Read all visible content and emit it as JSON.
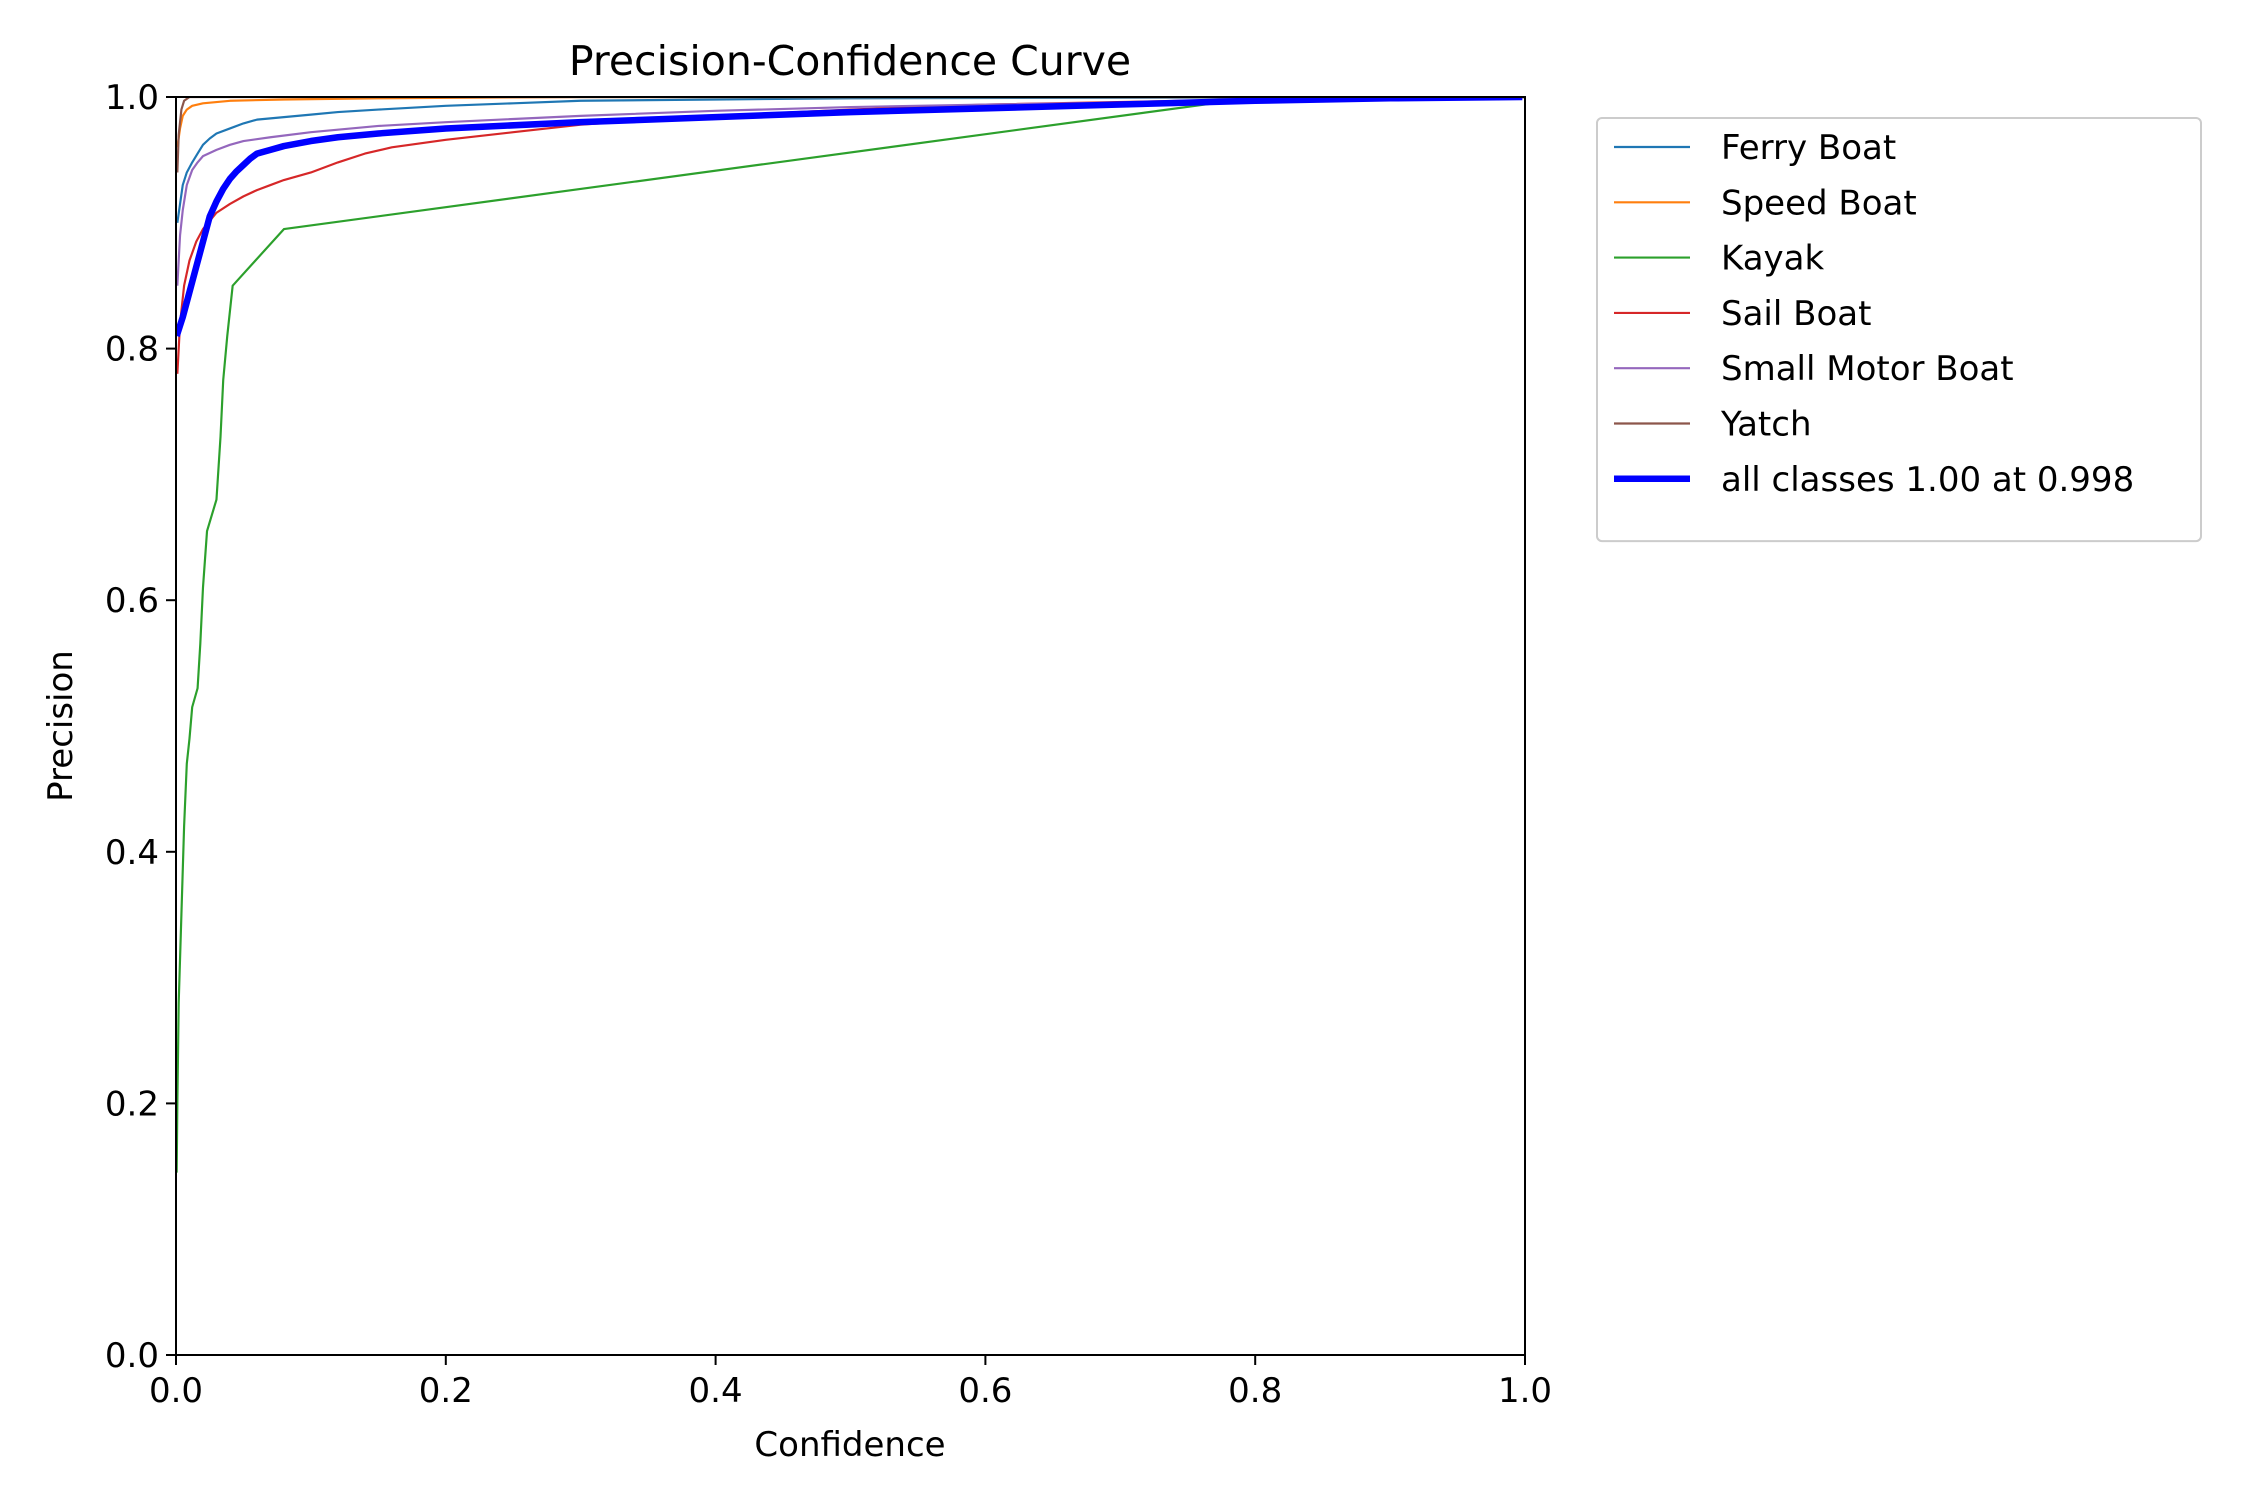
{
  "chart_data": {
    "type": "line",
    "title": "Precision-Confidence Curve",
    "xlabel": "Confidence",
    "ylabel": "Precision",
    "xlim": [
      0,
      1
    ],
    "ylim": [
      0,
      1
    ],
    "xticks": [
      "0.0",
      "0.2",
      "0.4",
      "0.6",
      "0.8",
      "1.0"
    ],
    "yticks": [
      "0.0",
      "0.2",
      "0.4",
      "0.6",
      "0.8",
      "1.0"
    ],
    "grid": false,
    "legend_position": "outside-upper-right",
    "series": [
      {
        "name": "Ferry Boat",
        "color": "#1f77b4",
        "line_width": 1.5,
        "points": [
          [
            0.001,
            0.9
          ],
          [
            0.003,
            0.915
          ],
          [
            0.005,
            0.93
          ],
          [
            0.008,
            0.94
          ],
          [
            0.012,
            0.948
          ],
          [
            0.016,
            0.955
          ],
          [
            0.02,
            0.962
          ],
          [
            0.025,
            0.967
          ],
          [
            0.03,
            0.971
          ],
          [
            0.04,
            0.975
          ],
          [
            0.05,
            0.979
          ],
          [
            0.06,
            0.982
          ],
          [
            0.08,
            0.984
          ],
          [
            0.1,
            0.986
          ],
          [
            0.12,
            0.988
          ],
          [
            0.15,
            0.99
          ],
          [
            0.2,
            0.993
          ],
          [
            0.25,
            0.995
          ],
          [
            0.3,
            0.997
          ],
          [
            0.4,
            0.998
          ],
          [
            0.5,
            0.999
          ],
          [
            1.0,
            1.0
          ]
        ]
      },
      {
        "name": "Speed Boat",
        "color": "#ff7f0e",
        "line_width": 1.5,
        "points": [
          [
            0.001,
            0.96
          ],
          [
            0.003,
            0.975
          ],
          [
            0.005,
            0.985
          ],
          [
            0.008,
            0.99
          ],
          [
            0.012,
            0.993
          ],
          [
            0.02,
            0.995
          ],
          [
            0.04,
            0.997
          ],
          [
            0.08,
            0.998
          ],
          [
            0.15,
            0.999
          ],
          [
            0.3,
            1.0
          ],
          [
            1.0,
            1.0
          ]
        ]
      },
      {
        "name": "Kayak",
        "color": "#2ca02c",
        "line_width": 1.5,
        "points": [
          [
            0.0005,
            0.145
          ],
          [
            0.001,
            0.2
          ],
          [
            0.002,
            0.28
          ],
          [
            0.004,
            0.35
          ],
          [
            0.006,
            0.42
          ],
          [
            0.008,
            0.47
          ],
          [
            0.01,
            0.49
          ],
          [
            0.012,
            0.515
          ],
          [
            0.016,
            0.53
          ],
          [
            0.018,
            0.565
          ],
          [
            0.02,
            0.61
          ],
          [
            0.023,
            0.655
          ],
          [
            0.03,
            0.68
          ],
          [
            0.033,
            0.73
          ],
          [
            0.035,
            0.775
          ],
          [
            0.038,
            0.81
          ],
          [
            0.042,
            0.85
          ],
          [
            0.08,
            0.895
          ],
          [
            0.79,
            0.998
          ],
          [
            0.85,
            1.0
          ],
          [
            1.0,
            1.0
          ]
        ]
      },
      {
        "name": "Sail Boat",
        "color": "#d62728",
        "line_width": 1.5,
        "points": [
          [
            0.001,
            0.78
          ],
          [
            0.003,
            0.82
          ],
          [
            0.006,
            0.85
          ],
          [
            0.01,
            0.87
          ],
          [
            0.015,
            0.885
          ],
          [
            0.02,
            0.895
          ],
          [
            0.03,
            0.908
          ],
          [
            0.04,
            0.915
          ],
          [
            0.05,
            0.921
          ],
          [
            0.06,
            0.926
          ],
          [
            0.07,
            0.93
          ],
          [
            0.08,
            0.934
          ],
          [
            0.1,
            0.94
          ],
          [
            0.12,
            0.948
          ],
          [
            0.14,
            0.955
          ],
          [
            0.16,
            0.96
          ],
          [
            0.2,
            0.966
          ],
          [
            0.25,
            0.972
          ],
          [
            0.3,
            0.978
          ],
          [
            0.4,
            0.985
          ],
          [
            0.5,
            0.99
          ],
          [
            0.6,
            0.994
          ],
          [
            0.8,
            0.998
          ],
          [
            1.0,
            1.0
          ]
        ]
      },
      {
        "name": "Small Motor Boat",
        "color": "#9467bd",
        "line_width": 1.5,
        "points": [
          [
            0.001,
            0.85
          ],
          [
            0.003,
            0.89
          ],
          [
            0.005,
            0.91
          ],
          [
            0.008,
            0.93
          ],
          [
            0.012,
            0.942
          ],
          [
            0.016,
            0.948
          ],
          [
            0.02,
            0.953
          ],
          [
            0.03,
            0.958
          ],
          [
            0.04,
            0.962
          ],
          [
            0.05,
            0.965
          ],
          [
            0.07,
            0.968
          ],
          [
            0.1,
            0.972
          ],
          [
            0.15,
            0.977
          ],
          [
            0.2,
            0.98
          ],
          [
            0.3,
            0.985
          ],
          [
            0.4,
            0.989
          ],
          [
            0.5,
            0.992
          ],
          [
            0.6,
            0.994
          ],
          [
            0.8,
            0.997
          ],
          [
            1.0,
            1.0
          ]
        ]
      },
      {
        "name": "Yatch",
        "color": "#8c564b",
        "line_width": 1.5,
        "points": [
          [
            0.001,
            0.94
          ],
          [
            0.002,
            0.97
          ],
          [
            0.004,
            0.99
          ],
          [
            0.006,
            0.997
          ],
          [
            0.01,
            1.0
          ],
          [
            1.0,
            1.0
          ]
        ]
      },
      {
        "name": "all classes 1.00 at 0.998",
        "color": "#0000ff",
        "line_width": 4.5,
        "points": [
          [
            0.0005,
            0.81
          ],
          [
            0.005,
            0.825
          ],
          [
            0.01,
            0.845
          ],
          [
            0.015,
            0.865
          ],
          [
            0.02,
            0.885
          ],
          [
            0.025,
            0.905
          ],
          [
            0.03,
            0.917
          ],
          [
            0.035,
            0.927
          ],
          [
            0.04,
            0.935
          ],
          [
            0.045,
            0.941
          ],
          [
            0.05,
            0.946
          ],
          [
            0.055,
            0.951
          ],
          [
            0.06,
            0.955
          ],
          [
            0.07,
            0.958
          ],
          [
            0.08,
            0.961
          ],
          [
            0.1,
            0.965
          ],
          [
            0.12,
            0.968
          ],
          [
            0.15,
            0.971
          ],
          [
            0.2,
            0.975
          ],
          [
            0.3,
            0.98
          ],
          [
            0.4,
            0.984
          ],
          [
            0.5,
            0.988
          ],
          [
            0.6,
            0.991
          ],
          [
            0.7,
            0.994
          ],
          [
            0.8,
            0.997
          ],
          [
            0.9,
            0.999
          ],
          [
            0.998,
            1.0
          ]
        ]
      }
    ]
  }
}
